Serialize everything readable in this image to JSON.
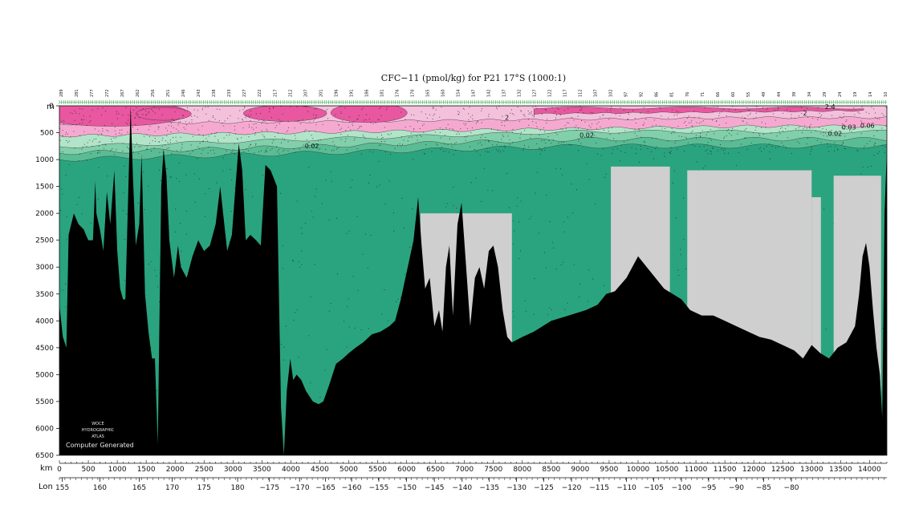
{
  "chart_data": {
    "type": "heatmap",
    "title": "CFC−11 (pmol/kg) for P21 17°S (1000:1)",
    "y_axis": {
      "label": "m",
      "range": [
        6500,
        0
      ],
      "inverted": true,
      "ticks": [
        0,
        500,
        1000,
        1500,
        2000,
        2500,
        3000,
        3500,
        4000,
        4500,
        5000,
        5500,
        6000,
        6500
      ]
    },
    "x_axis_km": {
      "label": "km",
      "range": [
        0,
        14300
      ],
      "ticks": [
        0,
        500,
        1000,
        1500,
        2000,
        2500,
        3000,
        3500,
        4000,
        4500,
        5000,
        5500,
        6000,
        6500,
        7000,
        7500,
        8000,
        8500,
        9000,
        9500,
        10000,
        10500,
        11000,
        11500,
        12000,
        12500,
        13000,
        13500,
        14000
      ]
    },
    "x_axis_lon": {
      "label": "Lon",
      "ticks": [
        {
          "km": 50,
          "label": "155"
        },
        {
          "km": 700,
          "label": "160"
        },
        {
          "km": 1380,
          "label": "165"
        },
        {
          "km": 1950,
          "label": "170"
        },
        {
          "km": 2500,
          "label": "175"
        },
        {
          "km": 3080,
          "label": "180"
        },
        {
          "km": 3630,
          "label": "−175"
        },
        {
          "km": 4150,
          "label": "−170"
        },
        {
          "km": 4600,
          "label": "−165"
        },
        {
          "km": 5050,
          "label": "−160"
        },
        {
          "km": 5520,
          "label": "−155"
        },
        {
          "km": 6000,
          "label": "−150"
        },
        {
          "km": 6480,
          "label": "−145"
        },
        {
          "km": 6960,
          "label": "−140"
        },
        {
          "km": 7430,
          "label": "−135"
        },
        {
          "km": 7900,
          "label": "−130"
        },
        {
          "km": 8370,
          "label": "−125"
        },
        {
          "km": 8850,
          "label": "−120"
        },
        {
          "km": 9330,
          "label": "−115"
        },
        {
          "km": 9800,
          "label": "−110"
        },
        {
          "km": 10270,
          "label": "−105"
        },
        {
          "km": 10750,
          "label": "−100"
        },
        {
          "km": 11220,
          "label": "−95"
        },
        {
          "km": 11700,
          "label": "−90"
        },
        {
          "km": 12170,
          "label": "−85"
        },
        {
          "km": 12650,
          "label": "−80"
        }
      ]
    },
    "colors": {
      "deep_green": "#2aa47e",
      "pink": "#f6a9d0",
      "dark_pink": "#e857a0",
      "land": "#000000",
      "no_data": "#cfcfcf"
    },
    "contour_labels": [
      {
        "x_km": 7700,
        "depth": 260,
        "text": "2"
      },
      {
        "x_km": 12850,
        "depth": 180,
        "text": "2"
      },
      {
        "x_km": 13230,
        "depth": 60,
        "text": "2.4"
      },
      {
        "x_km": 4240,
        "depth": 790,
        "text": "0.02"
      },
      {
        "x_km": 8990,
        "depth": 590,
        "text": "0.02"
      },
      {
        "x_km": 13280,
        "depth": 560,
        "text": "0.02"
      },
      {
        "x_km": 13520,
        "depth": 440,
        "text": "0.03"
      },
      {
        "x_km": 13840,
        "depth": 410,
        "text": "0.06"
      }
    ],
    "bottom_profile": [
      [
        0,
        3700
      ],
      [
        60,
        4300
      ],
      [
        120,
        4500
      ],
      [
        160,
        2400
      ],
      [
        250,
        2000
      ],
      [
        330,
        2200
      ],
      [
        420,
        2300
      ],
      [
        500,
        2500
      ],
      [
        580,
        2500
      ],
      [
        620,
        1400
      ],
      [
        640,
        2000
      ],
      [
        700,
        2300
      ],
      [
        760,
        2700
      ],
      [
        820,
        1600
      ],
      [
        880,
        2200
      ],
      [
        950,
        1200
      ],
      [
        1000,
        2700
      ],
      [
        1050,
        3400
      ],
      [
        1100,
        3600
      ],
      [
        1140,
        3600
      ],
      [
        1180,
        2000
      ],
      [
        1230,
        0
      ],
      [
        1270,
        1300
      ],
      [
        1320,
        2600
      ],
      [
        1380,
        2200
      ],
      [
        1420,
        900
      ],
      [
        1480,
        3500
      ],
      [
        1540,
        4200
      ],
      [
        1600,
        4700
      ],
      [
        1650,
        4700
      ],
      [
        1700,
        6300
      ],
      [
        1760,
        1500
      ],
      [
        1800,
        800
      ],
      [
        1850,
        1300
      ],
      [
        1900,
        2500
      ],
      [
        1980,
        3200
      ],
      [
        2050,
        2600
      ],
      [
        2100,
        3000
      ],
      [
        2200,
        3200
      ],
      [
        2300,
        2800
      ],
      [
        2400,
        2500
      ],
      [
        2500,
        2700
      ],
      [
        2600,
        2600
      ],
      [
        2700,
        2200
      ],
      [
        2780,
        1500
      ],
      [
        2830,
        2000
      ],
      [
        2900,
        2700
      ],
      [
        2980,
        2400
      ],
      [
        3050,
        1400
      ],
      [
        3100,
        700
      ],
      [
        3160,
        1200
      ],
      [
        3220,
        2500
      ],
      [
        3300,
        2400
      ],
      [
        3400,
        2500
      ],
      [
        3480,
        2600
      ],
      [
        3560,
        1100
      ],
      [
        3650,
        1200
      ],
      [
        3760,
        1500
      ],
      [
        3830,
        5600
      ],
      [
        3880,
        6500
      ],
      [
        3930,
        5300
      ],
      [
        3990,
        4700
      ],
      [
        4040,
        5100
      ],
      [
        4100,
        5000
      ],
      [
        4180,
        5100
      ],
      [
        4260,
        5300
      ],
      [
        4380,
        5500
      ],
      [
        4480,
        5550
      ],
      [
        4560,
        5500
      ],
      [
        4660,
        5200
      ],
      [
        4780,
        4800
      ],
      [
        4900,
        4700
      ],
      [
        5000,
        4600
      ],
      [
        5120,
        4500
      ],
      [
        5250,
        4400
      ],
      [
        5400,
        4250
      ],
      [
        5550,
        4200
      ],
      [
        5700,
        4100
      ],
      [
        5800,
        4000
      ],
      [
        5900,
        3600
      ],
      [
        6000,
        3100
      ],
      [
        6120,
        2500
      ],
      [
        6200,
        1700
      ],
      [
        6260,
        2600
      ],
      [
        6320,
        3400
      ],
      [
        6400,
        3200
      ],
      [
        6480,
        4100
      ],
      [
        6560,
        3800
      ],
      [
        6620,
        4200
      ],
      [
        6680,
        3000
      ],
      [
        6740,
        2600
      ],
      [
        6800,
        3900
      ],
      [
        6880,
        2200
      ],
      [
        6950,
        1800
      ],
      [
        7030,
        3000
      ],
      [
        7100,
        4100
      ],
      [
        7180,
        3200
      ],
      [
        7260,
        3000
      ],
      [
        7340,
        3400
      ],
      [
        7420,
        2700
      ],
      [
        7500,
        2600
      ],
      [
        7580,
        3000
      ],
      [
        7660,
        3800
      ],
      [
        7740,
        4300
      ],
      [
        7820,
        4400
      ],
      [
        8000,
        4300
      ],
      [
        8200,
        4200
      ],
      [
        8500,
        4000
      ],
      [
        8800,
        3900
      ],
      [
        9100,
        3800
      ],
      [
        9300,
        3700
      ],
      [
        9450,
        3500
      ],
      [
        9600,
        3450
      ],
      [
        9800,
        3200
      ],
      [
        10000,
        2800
      ],
      [
        10150,
        3000
      ],
      [
        10300,
        3200
      ],
      [
        10450,
        3400
      ],
      [
        10600,
        3500
      ],
      [
        10750,
        3600
      ],
      [
        10900,
        3800
      ],
      [
        11100,
        3900
      ],
      [
        11300,
        3900
      ],
      [
        11500,
        4000
      ],
      [
        11700,
        4100
      ],
      [
        11900,
        4200
      ],
      [
        12100,
        4300
      ],
      [
        12300,
        4350
      ],
      [
        12500,
        4450
      ],
      [
        12700,
        4550
      ],
      [
        12850,
        4700
      ],
      [
        13000,
        4450
      ],
      [
        13150,
        4600
      ],
      [
        13300,
        4700
      ],
      [
        13450,
        4500
      ],
      [
        13600,
        4400
      ],
      [
        13750,
        4100
      ],
      [
        13820,
        3500
      ],
      [
        13880,
        2800
      ],
      [
        13940,
        2550
      ],
      [
        14000,
        3000
      ],
      [
        14060,
        3800
      ],
      [
        14120,
        4500
      ],
      [
        14180,
        5000
      ],
      [
        14220,
        5800
      ],
      [
        14260,
        2000
      ],
      [
        14300,
        800
      ]
    ],
    "no_data_regions": [
      {
        "km": [
          6240,
          7820
        ],
        "depth": [
          2000,
          6500
        ]
      },
      {
        "km": [
          9530,
          10550
        ],
        "depth": [
          1130,
          6500
        ]
      },
      {
        "km": [
          10850,
          13000
        ],
        "depth": [
          1200,
          6500
        ]
      },
      {
        "km": [
          13000,
          13160
        ],
        "depth": [
          1700,
          6500
        ]
      },
      {
        "km": [
          13380,
          14200
        ],
        "depth": [
          1300,
          6500
        ]
      }
    ],
    "station_numbers": [
      "289",
      "281",
      "277",
      "272",
      "267",
      "262",
      "256",
      "251",
      "246",
      "243",
      "238",
      "233",
      "227",
      "222",
      "217",
      "212",
      "207",
      "201",
      "196",
      "191",
      "186",
      "181",
      "176",
      "170",
      "165",
      "160",
      "154",
      "147",
      "142",
      "137",
      "132",
      "127",
      "122",
      "117",
      "112",
      "107",
      "102",
      "97",
      "92",
      "86",
      "81",
      "76",
      "71",
      "66",
      "60",
      "55",
      "49",
      "44",
      "39",
      "34",
      "29",
      "24",
      "19",
      "14",
      "10"
    ],
    "watermark": [
      "WOCE",
      "HYDROGRAPHIC",
      "ATLAS",
      "Computer Generated"
    ]
  }
}
